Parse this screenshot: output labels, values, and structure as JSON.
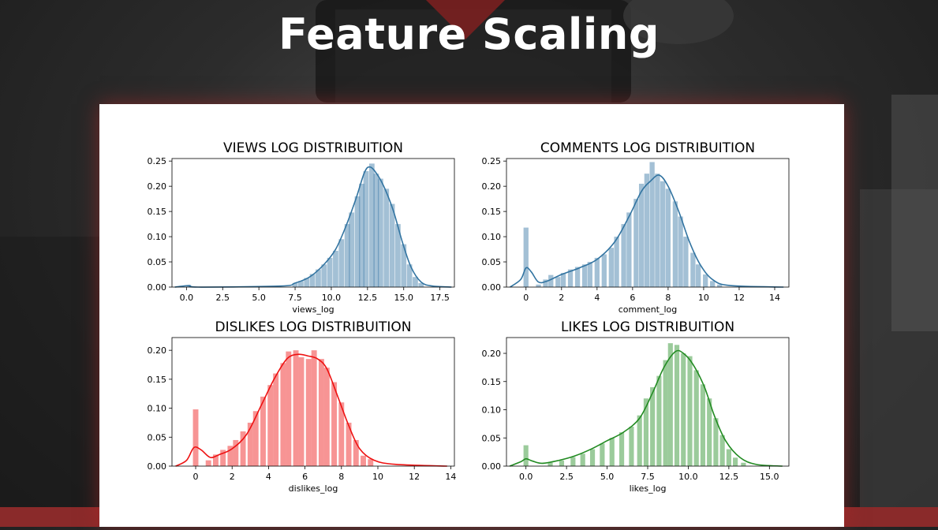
{
  "slide": {
    "title": "Feature Scaling"
  },
  "chart_data": [
    {
      "type": "histogram",
      "title": "VIEWS LOG DISTRIBUITION",
      "xlabel": "views_log",
      "ylabel": "",
      "xlim": [
        -1,
        18.5
      ],
      "ylim": [
        0,
        0.255
      ],
      "xticks": [
        "0.0",
        "2.5",
        "5.0",
        "7.5",
        "10.0",
        "12.5",
        "15.0",
        "17.5"
      ],
      "yticks": [
        "0.00",
        "0.05",
        "0.10",
        "0.15",
        "0.20",
        "0.25"
      ],
      "color": "#3274a1",
      "bin_width": 0.37,
      "bins": [
        [
          0.2,
          0.003
        ],
        [
          7.5,
          0.008
        ],
        [
          7.9,
          0.012
        ],
        [
          8.3,
          0.018
        ],
        [
          8.7,
          0.026
        ],
        [
          9.1,
          0.035
        ],
        [
          9.5,
          0.045
        ],
        [
          9.9,
          0.058
        ],
        [
          10.3,
          0.072
        ],
        [
          10.7,
          0.095
        ],
        [
          11.1,
          0.125
        ],
        [
          11.4,
          0.148
        ],
        [
          11.8,
          0.18
        ],
        [
          12.1,
          0.205
        ],
        [
          12.4,
          0.23
        ],
        [
          12.8,
          0.245
        ],
        [
          13.1,
          0.225
        ],
        [
          13.4,
          0.215
        ],
        [
          13.8,
          0.195
        ],
        [
          14.2,
          0.165
        ],
        [
          14.6,
          0.125
        ],
        [
          15.0,
          0.085
        ],
        [
          15.4,
          0.045
        ],
        [
          15.8,
          0.02
        ],
        [
          16.2,
          0.008
        ]
      ],
      "kde": [
        [
          -0.8,
          0.0
        ],
        [
          0.2,
          0.003
        ],
        [
          0.8,
          0.0
        ],
        [
          6.5,
          0.002
        ],
        [
          7.5,
          0.008
        ],
        [
          8.5,
          0.02
        ],
        [
          9.5,
          0.045
        ],
        [
          10.3,
          0.075
        ],
        [
          11.0,
          0.12
        ],
        [
          11.7,
          0.175
        ],
        [
          12.3,
          0.228
        ],
        [
          12.7,
          0.238
        ],
        [
          13.2,
          0.222
        ],
        [
          13.7,
          0.195
        ],
        [
          14.3,
          0.15
        ],
        [
          14.9,
          0.09
        ],
        [
          15.5,
          0.04
        ],
        [
          16.2,
          0.01
        ],
        [
          17.0,
          0.002
        ],
        [
          18.3,
          0.0
        ]
      ]
    },
    {
      "type": "histogram",
      "title": "COMMENTS LOG DISTRIBUITION",
      "xlabel": "comment_log",
      "ylabel": "",
      "xlim": [
        -1.1,
        14.8
      ],
      "ylim": [
        0,
        0.255
      ],
      "xticks": [
        "0",
        "2",
        "4",
        "6",
        "8",
        "10",
        "12",
        "14"
      ],
      "yticks": [
        "0.00",
        "0.05",
        "0.10",
        "0.15",
        "0.20",
        "0.25"
      ],
      "color": "#3274a1",
      "bin_width": 0.28,
      "bins": [
        [
          0.0,
          0.118
        ],
        [
          0.7,
          0.005
        ],
        [
          1.1,
          0.015
        ],
        [
          1.4,
          0.024
        ],
        [
          1.8,
          0.02
        ],
        [
          2.1,
          0.028
        ],
        [
          2.5,
          0.035
        ],
        [
          2.9,
          0.04
        ],
        [
          3.3,
          0.045
        ],
        [
          3.6,
          0.05
        ],
        [
          4.0,
          0.058
        ],
        [
          4.4,
          0.065
        ],
        [
          4.8,
          0.078
        ],
        [
          5.1,
          0.1
        ],
        [
          5.5,
          0.125
        ],
        [
          5.8,
          0.148
        ],
        [
          6.2,
          0.175
        ],
        [
          6.5,
          0.205
        ],
        [
          6.8,
          0.225
        ],
        [
          7.1,
          0.248
        ],
        [
          7.4,
          0.225
        ],
        [
          7.7,
          0.21
        ],
        [
          8.0,
          0.195
        ],
        [
          8.4,
          0.17
        ],
        [
          8.7,
          0.14
        ],
        [
          9.0,
          0.1
        ],
        [
          9.4,
          0.068
        ],
        [
          9.7,
          0.045
        ],
        [
          10.1,
          0.025
        ],
        [
          10.5,
          0.012
        ],
        [
          10.9,
          0.005
        ]
      ],
      "kde": [
        [
          -0.9,
          0.0
        ],
        [
          -0.3,
          0.015
        ],
        [
          0.0,
          0.038
        ],
        [
          0.3,
          0.03
        ],
        [
          0.7,
          0.01
        ],
        [
          1.2,
          0.012
        ],
        [
          2.0,
          0.025
        ],
        [
          3.0,
          0.038
        ],
        [
          4.0,
          0.055
        ],
        [
          5.0,
          0.09
        ],
        [
          5.8,
          0.14
        ],
        [
          6.5,
          0.19
        ],
        [
          7.0,
          0.21
        ],
        [
          7.5,
          0.222
        ],
        [
          8.0,
          0.2
        ],
        [
          8.6,
          0.15
        ],
        [
          9.2,
          0.09
        ],
        [
          9.8,
          0.045
        ],
        [
          10.5,
          0.015
        ],
        [
          11.5,
          0.003
        ],
        [
          14.5,
          0.0
        ]
      ]
    },
    {
      "type": "histogram",
      "title": "DISLIKES LOG DISTRIBUITION",
      "xlabel": "dislikes_log",
      "ylabel": "",
      "xlim": [
        -1.3,
        14.2
      ],
      "ylim": [
        0,
        0.222
      ],
      "xticks": [
        "0",
        "2",
        "4",
        "6",
        "8",
        "10",
        "12",
        "14"
      ],
      "yticks": [
        "0.00",
        "0.05",
        "0.10",
        "0.15",
        "0.20"
      ],
      "color": "#ee1111",
      "bin_width": 0.3,
      "bins": [
        [
          0.0,
          0.098
        ],
        [
          0.7,
          0.01
        ],
        [
          1.1,
          0.02
        ],
        [
          1.5,
          0.028
        ],
        [
          1.9,
          0.035
        ],
        [
          2.2,
          0.045
        ],
        [
          2.6,
          0.06
        ],
        [
          3.0,
          0.075
        ],
        [
          3.3,
          0.095
        ],
        [
          3.7,
          0.12
        ],
        [
          4.1,
          0.14
        ],
        [
          4.4,
          0.16
        ],
        [
          4.8,
          0.178
        ],
        [
          5.1,
          0.198
        ],
        [
          5.5,
          0.2
        ],
        [
          5.8,
          0.188
        ],
        [
          6.2,
          0.185
        ],
        [
          6.5,
          0.2
        ],
        [
          6.9,
          0.185
        ],
        [
          7.2,
          0.17
        ],
        [
          7.6,
          0.145
        ],
        [
          8.0,
          0.11
        ],
        [
          8.4,
          0.075
        ],
        [
          8.8,
          0.045
        ],
        [
          9.2,
          0.018
        ],
        [
          9.6,
          0.012
        ]
      ],
      "kde": [
        [
          -1.1,
          0.0
        ],
        [
          -0.5,
          0.01
        ],
        [
          -0.1,
          0.032
        ],
        [
          0.3,
          0.028
        ],
        [
          0.8,
          0.015
        ],
        [
          1.3,
          0.02
        ],
        [
          2.0,
          0.03
        ],
        [
          2.8,
          0.055
        ],
        [
          3.6,
          0.105
        ],
        [
          4.3,
          0.15
        ],
        [
          5.0,
          0.185
        ],
        [
          5.6,
          0.193
        ],
        [
          6.2,
          0.19
        ],
        [
          6.7,
          0.185
        ],
        [
          7.2,
          0.168
        ],
        [
          7.8,
          0.12
        ],
        [
          8.4,
          0.07
        ],
        [
          9.0,
          0.03
        ],
        [
          9.8,
          0.01
        ],
        [
          11.0,
          0.003
        ],
        [
          13.8,
          0.0
        ]
      ]
    },
    {
      "type": "histogram",
      "title": "LIKES LOG DISTRIBUITION",
      "xlabel": "likes_log",
      "ylabel": "",
      "xlim": [
        -1.2,
        16.2
      ],
      "ylim": [
        0,
        0.228
      ],
      "xticks": [
        "0.0",
        "2.5",
        "5.0",
        "7.5",
        "10.0",
        "12.5",
        "15.0"
      ],
      "yticks": [
        "0.00",
        "0.05",
        "0.10",
        "0.15",
        "0.20"
      ],
      "color": "#228b22",
      "bin_width": 0.3,
      "bins": [
        [
          0.0,
          0.037
        ],
        [
          1.5,
          0.006
        ],
        [
          2.2,
          0.01
        ],
        [
          2.9,
          0.016
        ],
        [
          3.5,
          0.022
        ],
        [
          4.1,
          0.03
        ],
        [
          4.7,
          0.04
        ],
        [
          5.3,
          0.05
        ],
        [
          5.9,
          0.06
        ],
        [
          6.5,
          0.07
        ],
        [
          7.0,
          0.09
        ],
        [
          7.4,
          0.12
        ],
        [
          7.8,
          0.14
        ],
        [
          8.2,
          0.16
        ],
        [
          8.6,
          0.188
        ],
        [
          8.9,
          0.218
        ],
        [
          9.3,
          0.215
        ],
        [
          9.7,
          0.2
        ],
        [
          10.1,
          0.195
        ],
        [
          10.5,
          0.17
        ],
        [
          10.9,
          0.145
        ],
        [
          11.3,
          0.12
        ],
        [
          11.7,
          0.085
        ],
        [
          12.1,
          0.055
        ],
        [
          12.5,
          0.03
        ],
        [
          12.9,
          0.015
        ],
        [
          13.4,
          0.006
        ]
      ],
      "kde": [
        [
          -1.0,
          0.0
        ],
        [
          -0.3,
          0.008
        ],
        [
          0.0,
          0.013
        ],
        [
          0.4,
          0.009
        ],
        [
          1.0,
          0.005
        ],
        [
          2.0,
          0.01
        ],
        [
          3.0,
          0.018
        ],
        [
          4.0,
          0.03
        ],
        [
          5.0,
          0.045
        ],
        [
          6.0,
          0.06
        ],
        [
          7.0,
          0.085
        ],
        [
          7.8,
          0.13
        ],
        [
          8.5,
          0.175
        ],
        [
          9.2,
          0.203
        ],
        [
          9.7,
          0.2
        ],
        [
          10.3,
          0.18
        ],
        [
          11.0,
          0.14
        ],
        [
          11.6,
          0.09
        ],
        [
          12.3,
          0.045
        ],
        [
          13.2,
          0.015
        ],
        [
          14.2,
          0.003
        ],
        [
          15.8,
          0.0
        ]
      ]
    }
  ]
}
